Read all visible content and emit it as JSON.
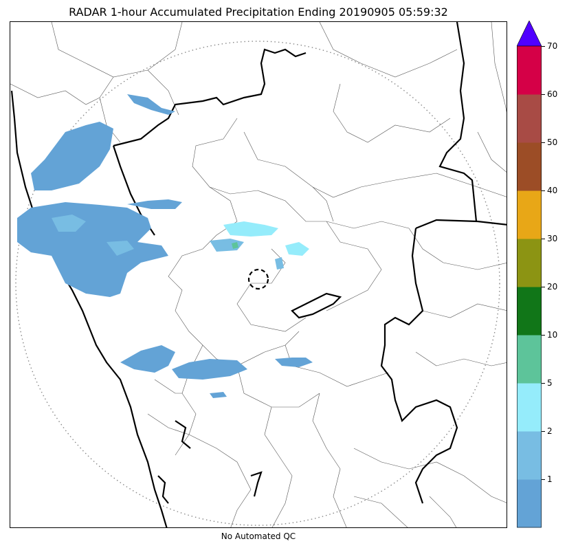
{
  "title": "RADAR 1-hour Accumulated Precipitation Ending 20190905 05:59:32",
  "bottom_note": "No Automated QC",
  "colorbar": {
    "colors": [
      "#63a3d6",
      "#78bde3",
      "#95ecfb",
      "#5dc49a",
      "#117618",
      "#8c9413",
      "#e8a717",
      "#9c4d26",
      "#a84b45",
      "#d50047"
    ],
    "extend_color": "#5000ff",
    "ticks": [
      "1",
      "2",
      "5",
      "10",
      "20",
      "30",
      "40",
      "50",
      "60",
      "70"
    ]
  },
  "map": {
    "radar_range_ring": "dotted",
    "radar_site_marker": "dashed-circle",
    "precip_color_main": "#63a3d6",
    "precip_color_light": "#78bde3",
    "precip_color_cyan": "#95ecfb",
    "precip_color_green": "#5dc49a"
  }
}
